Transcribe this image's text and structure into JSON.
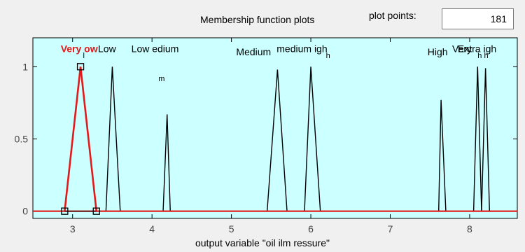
{
  "header": {
    "title": "Membership function plots",
    "plot_points_label": "plot points:",
    "plot_points_value": "181"
  },
  "chart_data": {
    "type": "line",
    "xlabel": "output variable \"oil ilm ressure\"",
    "xlim": [
      2.5,
      8.6
    ],
    "ylim": [
      -0.05,
      1.2
    ],
    "xticks": [
      3,
      4,
      5,
      6,
      7,
      8
    ],
    "yticks": [
      0,
      0.5,
      1
    ],
    "xtick_labels": [
      "3",
      "4",
      "5",
      "6",
      "7",
      "8"
    ],
    "ytick_labels": [
      "0",
      "0.5",
      "1"
    ],
    "selected_color": "#e41a1a",
    "plot_bg": "#ccffff",
    "series": [
      {
        "name": "Very low",
        "display": "Very ow",
        "selected": true,
        "x": [
          2.9,
          3.1,
          3.3
        ],
        "y": [
          0,
          1,
          0
        ]
      },
      {
        "name": "Low",
        "display": "Low",
        "x": [
          3.42,
          3.5,
          3.6
        ],
        "y": [
          0,
          1,
          0
        ]
      },
      {
        "name": "Low medium",
        "display": "Low edium",
        "x": [
          4.14,
          4.19,
          4.23
        ],
        "y": [
          0,
          0.67,
          0
        ]
      },
      {
        "name": "Medium",
        "display": "Medium",
        "x": [
          5.45,
          5.58,
          5.7
        ],
        "y": [
          0,
          0.98,
          0
        ]
      },
      {
        "name": "medium high",
        "display": "medium igh",
        "x": [
          5.92,
          6.0,
          6.12
        ],
        "y": [
          0,
          1,
          0
        ]
      },
      {
        "name": "High",
        "display": "High",
        "x": [
          7.61,
          7.64,
          7.7
        ],
        "y": [
          0,
          0.77,
          0
        ]
      },
      {
        "name": "Very high",
        "display": "Very high",
        "x": [
          8.05,
          8.1,
          8.15
        ],
        "y": [
          0,
          1,
          0
        ]
      },
      {
        "name": "Extra high",
        "display": "Extra igh",
        "x": [
          8.15,
          8.2,
          8.25
        ],
        "y": [
          0,
          0.99,
          0
        ]
      }
    ],
    "labels": [
      {
        "text": "Very ow",
        "x": 2.85,
        "y": 1.1,
        "selected": true
      },
      {
        "text": "Low",
        "x": 3.32,
        "y": 1.1
      },
      {
        "text": "Low edium",
        "x": 3.74,
        "y": 1.1
      },
      {
        "text": "Medium",
        "x": 5.06,
        "y": 1.08
      },
      {
        "text": "medium igh",
        "x": 5.57,
        "y": 1.1
      },
      {
        "text": "High",
        "x": 7.47,
        "y": 1.08
      },
      {
        "text": "Very",
        "x": 7.78,
        "y": 1.1
      },
      {
        "text": "Extra igh",
        "x": 7.85,
        "y": 1.1
      }
    ],
    "sub_labels": [
      {
        "text": "l",
        "x": 3.13,
        "y": 1.06
      },
      {
        "text": "m",
        "x": 4.08,
        "y": 0.9
      },
      {
        "text": "h",
        "x": 6.19,
        "y": 1.06
      },
      {
        "text": "h h",
        "x": 8.1,
        "y": 1.06
      }
    ]
  }
}
